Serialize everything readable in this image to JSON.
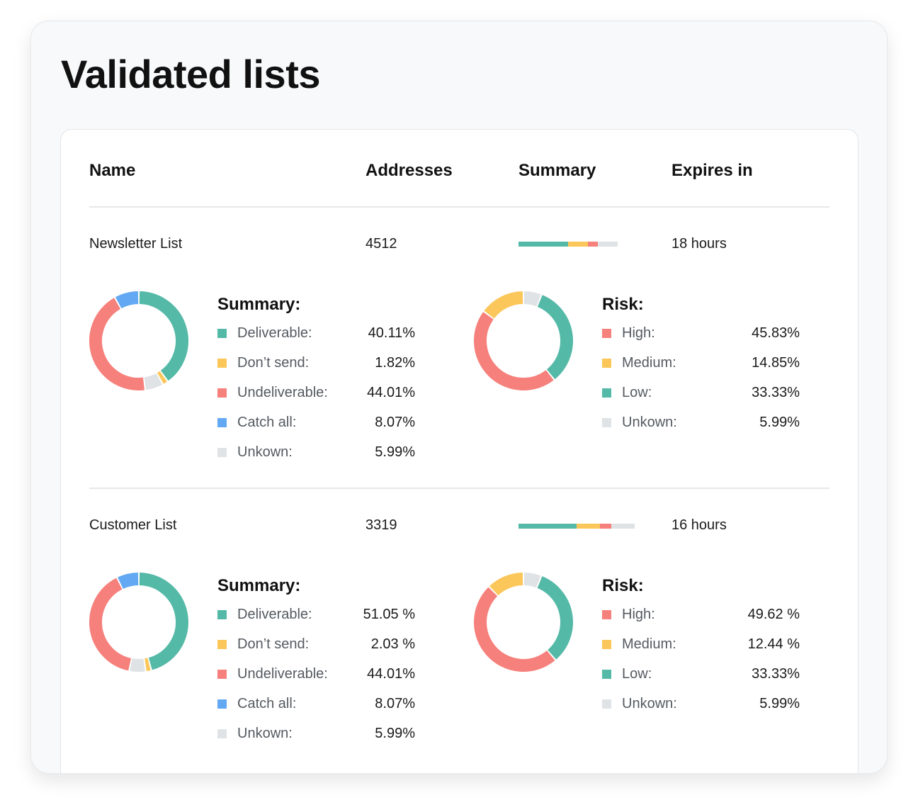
{
  "page": {
    "title": "Validated lists"
  },
  "table": {
    "headers": {
      "name": "Name",
      "addresses": "Addresses",
      "summary": "Summary",
      "expires": "Expires in"
    }
  },
  "colors": {
    "deliverable": "#55b9a7",
    "dont_send": "#fbc75a",
    "undeliverable": "#f6807b",
    "catch_all": "#62a8f2",
    "unknown": "#dfe3e5",
    "high": "#f6807b",
    "medium": "#fbc75a",
    "low": "#55b9a7"
  },
  "rows": [
    {
      "name": "Newsletter List",
      "addresses": "4512",
      "expires": "18 hours",
      "summary_bar": [
        {
          "key": "deliverable",
          "share": 50
        },
        {
          "key": "dont_send",
          "share": 20
        },
        {
          "key": "undeliverable",
          "share": 10
        },
        {
          "key": "unknown",
          "share": 20
        }
      ],
      "summary": {
        "title": "Summary:",
        "items": [
          {
            "key": "deliverable",
            "label": "Deliverable:",
            "value": "40.11%",
            "pct": 40.11
          },
          {
            "key": "dont_send",
            "label": "Don’t send:",
            "value": "1.82%",
            "pct": 1.82
          },
          {
            "key": "undeliverable",
            "label": "Undeliverable:",
            "value": "44.01%",
            "pct": 44.01
          },
          {
            "key": "catch_all",
            "label": "Catch all:",
            "value": "8.07%",
            "pct": 8.07
          },
          {
            "key": "unknown",
            "label": "Unkown:",
            "value": "5.99%",
            "pct": 5.99
          }
        ],
        "donut_order": [
          "deliverable",
          "dont_send",
          "unknown",
          "undeliverable",
          "catch_all"
        ]
      },
      "risk": {
        "title": "Risk:",
        "items": [
          {
            "key": "high",
            "label": "High:",
            "value": "45.83%",
            "pct": 45.83
          },
          {
            "key": "medium",
            "label": "Medium:",
            "value": "14.85%",
            "pct": 14.85
          },
          {
            "key": "low",
            "label": "Low:",
            "value": "33.33%",
            "pct": 33.33
          },
          {
            "key": "unknown",
            "label": "Unkown:",
            "value": "5.99%",
            "pct": 5.99
          }
        ],
        "donut_order": [
          "unknown",
          "low",
          "high",
          "medium"
        ]
      }
    },
    {
      "name": "Customer List",
      "addresses": "3319",
      "expires": "16 hours",
      "summary_bar": [
        {
          "key": "deliverable",
          "share": 50
        },
        {
          "key": "dont_send",
          "share": 20
        },
        {
          "key": "undeliverable",
          "share": 10
        },
        {
          "key": "unknown",
          "share": 20
        }
      ],
      "summary": {
        "title": "Summary:",
        "items": [
          {
            "key": "deliverable",
            "label": "Deliverable:",
            "value": "51.05 %",
            "pct": 51.05
          },
          {
            "key": "dont_send",
            "label": "Don’t send:",
            "value": "2.03 %",
            "pct": 2.03
          },
          {
            "key": "undeliverable",
            "label": "Undeliverable:",
            "value": "44.01%",
            "pct": 44.01
          },
          {
            "key": "catch_all",
            "label": "Catch all:",
            "value": "8.07%",
            "pct": 8.07
          },
          {
            "key": "unknown",
            "label": "Unkown:",
            "value": "5.99%",
            "pct": 5.99
          }
        ],
        "donut_order": [
          "deliverable",
          "dont_send",
          "unknown",
          "undeliverable",
          "catch_all"
        ]
      },
      "risk": {
        "title": "Risk:",
        "items": [
          {
            "key": "high",
            "label": "High:",
            "value": "49.62 %",
            "pct": 49.62
          },
          {
            "key": "medium",
            "label": "Medium:",
            "value": "12.44 %",
            "pct": 12.44
          },
          {
            "key": "low",
            "label": "Low:",
            "value": "33.33%",
            "pct": 33.33
          },
          {
            "key": "unknown",
            "label": "Unkown:",
            "value": "5.99%",
            "pct": 5.99
          }
        ],
        "donut_order": [
          "unknown",
          "low",
          "high",
          "medium"
        ]
      }
    }
  ]
}
